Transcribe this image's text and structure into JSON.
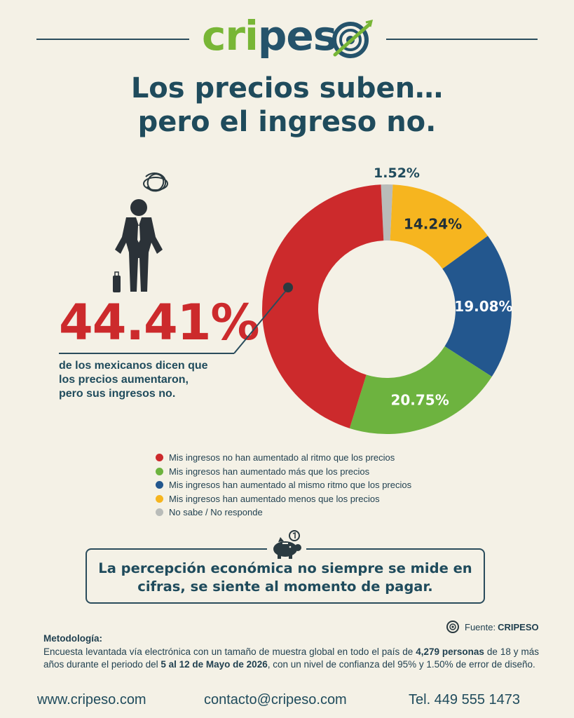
{
  "brand": {
    "part1": "cri",
    "part2": "pes",
    "logo_icon": "target-globe-icon"
  },
  "title": {
    "line1": "Los precios suben…",
    "line2": "pero el ingreso no."
  },
  "highlight": {
    "value": "44.41%",
    "caption_line1": "de los mexicanos dicen que",
    "caption_line2": "los precios aumentaron,",
    "caption_line3": "pero sus ingresos no."
  },
  "chart_data": {
    "type": "pie",
    "donut": true,
    "categories": [
      "Mis ingresos no han aumentado al ritmo que los precios",
      "Mis ingresos han aumentado más que los precios",
      "Mis ingresos han aumentado al mismo ritmo que los precios",
      "Mis ingresos han aumentado menos que los precios",
      "No sabe / No responde"
    ],
    "values": [
      44.41,
      20.75,
      19.08,
      14.24,
      1.52
    ],
    "labels": [
      "",
      "20.75%",
      "19.08%",
      "14.24%",
      "1.52%"
    ],
    "colors": [
      "#cc2a2c",
      "#6db33f",
      "#23578e",
      "#f6b51f",
      "#b9bcb9"
    ],
    "legend_position": "bottom"
  },
  "quote": {
    "line1": "La percepción económica no siempre se mide en",
    "line2": "cifras, se siente al momento de pagar.",
    "icon": "piggy-bank-icon"
  },
  "source": {
    "label": "Fuente:",
    "name": "CRIPESO"
  },
  "methodology": {
    "title": "Metodología:",
    "t1": "Encuesta levantada vía electrónica con un tamaño de muestra global en todo el país de ",
    "b1": "4,279 personas",
    "t2": " de 18 y más años durante el periodo del ",
    "b2": "5 al 12 de Mayo de 2026",
    "t3": ", con un nivel de confianza del 95% y 1.50% de error de diseño."
  },
  "footer": {
    "web": "www.cripeso.com",
    "email": "contacto@cripeso.com",
    "phone": "Tel. 449 555 1473"
  }
}
